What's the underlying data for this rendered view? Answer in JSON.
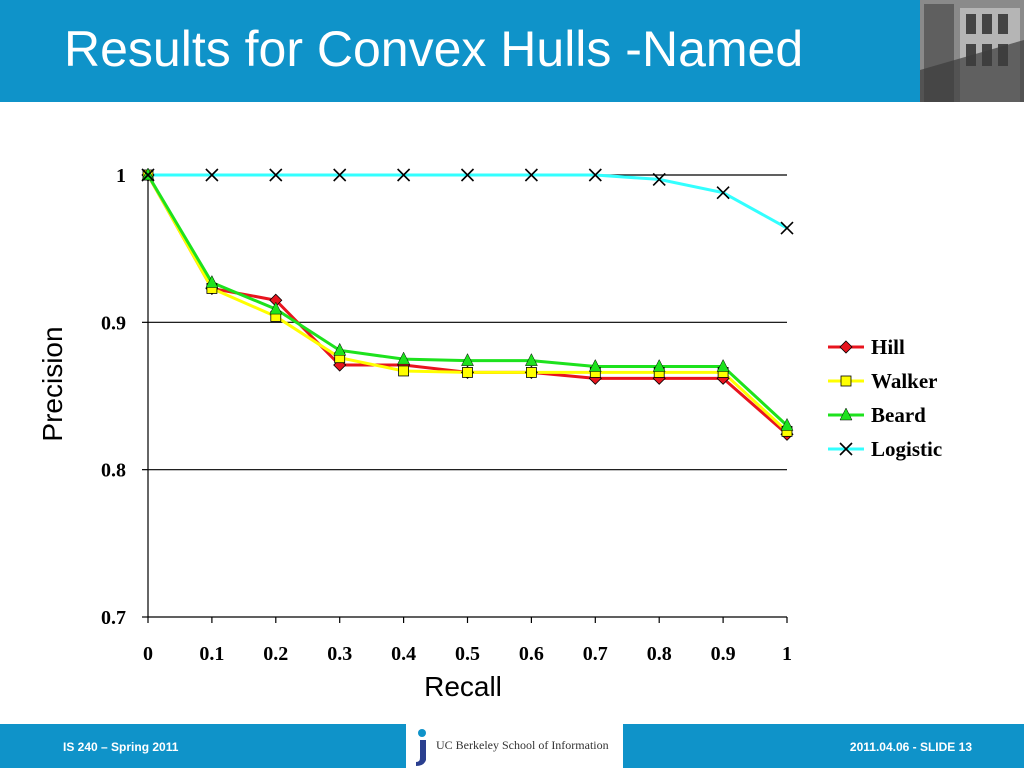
{
  "slide": {
    "title": "Results for Convex Hulls -Named",
    "footer_left": "IS 240 – Spring 2011",
    "footer_right": "2011.04.06 -  SLIDE 13",
    "footer_logo": "UC Berkeley School of Information",
    "colors": {
      "header": "#0f93c9"
    },
    "photo_icon": "building-photo"
  },
  "chart_data": {
    "type": "line",
    "xlabel": "Recall",
    "ylabel": "Precision",
    "ylim": [
      0.7,
      1.0
    ],
    "xlim": [
      0,
      1
    ],
    "yticks": [
      {
        "value": 0.7,
        "label": "0.7"
      },
      {
        "value": 0.8,
        "label": "0.8"
      },
      {
        "value": 0.9,
        "label": "0.9"
      },
      {
        "value": 1.0,
        "label": "1"
      }
    ],
    "xticks": [
      {
        "value": 0,
        "label": "0"
      },
      {
        "value": 0.1,
        "label": "0.1"
      },
      {
        "value": 0.2,
        "label": "0.2"
      },
      {
        "value": 0.3,
        "label": "0.3"
      },
      {
        "value": 0.4,
        "label": "0.4"
      },
      {
        "value": 0.5,
        "label": "0.5"
      },
      {
        "value": 0.6,
        "label": "0.6"
      },
      {
        "value": 0.7,
        "label": "0.7"
      },
      {
        "value": 0.8,
        "label": "0.8"
      },
      {
        "value": 0.9,
        "label": "0.9"
      },
      {
        "value": 1,
        "label": "1"
      }
    ],
    "grid": "horizontal",
    "legend_position": "right",
    "x": [
      0,
      0.1,
      0.2,
      0.3,
      0.4,
      0.5,
      0.6,
      0.7,
      0.8,
      0.9,
      1
    ],
    "series": [
      {
        "name": "Hill",
        "color": "#e8141e",
        "marker": "diamond",
        "values": [
          1.0,
          0.923,
          0.915,
          0.871,
          0.871,
          0.866,
          0.866,
          0.862,
          0.862,
          0.862,
          0.824
        ]
      },
      {
        "name": "Walker",
        "color": "#ffff00",
        "marker": "square",
        "values": [
          1.0,
          0.923,
          0.904,
          0.876,
          0.867,
          0.866,
          0.866,
          0.866,
          0.866,
          0.866,
          0.826
        ]
      },
      {
        "name": "Beard",
        "color": "#1de21d",
        "marker": "triangle",
        "values": [
          1.0,
          0.927,
          0.909,
          0.881,
          0.875,
          0.874,
          0.874,
          0.87,
          0.87,
          0.87,
          0.83
        ]
      },
      {
        "name": "Logistic",
        "color": "#33ffff",
        "marker": "x",
        "values": [
          1.0,
          1.0,
          1.0,
          1.0,
          1.0,
          1.0,
          1.0,
          1.0,
          0.997,
          0.988,
          0.964
        ]
      }
    ]
  }
}
